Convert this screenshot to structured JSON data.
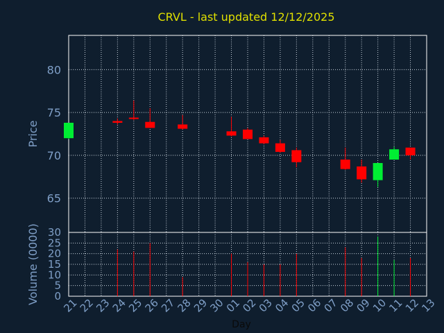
{
  "chart_data": {
    "type": "candlestick",
    "title": "CRVL - last updated 12/12/2025",
    "xlabel": "Day",
    "x_tick_labels": [
      "21",
      "22",
      "23",
      "24",
      "25",
      "26",
      "27",
      "28",
      "29",
      "30",
      "01",
      "02",
      "03",
      "04",
      "05",
      "06",
      "07",
      "08",
      "09",
      "10",
      "11",
      "12",
      "13"
    ],
    "price_panel": {
      "ylabel": "Price",
      "ylim": [
        61,
        84
      ],
      "y_ticks": [
        65,
        70,
        75,
        80
      ],
      "candles": [
        {
          "day": 0,
          "open": 72.0,
          "high": 73.8,
          "low": 71.9,
          "close": 73.8,
          "color": "green"
        },
        {
          "day": 3,
          "open": 74.0,
          "high": 74.3,
          "low": 73.6,
          "close": 73.8,
          "color": "red"
        },
        {
          "day": 4,
          "open": 74.4,
          "high": 76.4,
          "low": 74.1,
          "close": 74.3,
          "color": "red"
        },
        {
          "day": 5,
          "open": 73.9,
          "high": 75.5,
          "low": 73.2,
          "close": 73.2,
          "color": "red"
        },
        {
          "day": 7,
          "open": 73.6,
          "high": 74.7,
          "low": 73.0,
          "close": 73.1,
          "color": "red"
        },
        {
          "day": 10,
          "open": 72.8,
          "high": 74.5,
          "low": 72.2,
          "close": 72.3,
          "color": "red"
        },
        {
          "day": 11,
          "open": 73.0,
          "high": 73.2,
          "low": 71.9,
          "close": 71.9,
          "color": "red"
        },
        {
          "day": 12,
          "open": 72.1,
          "high": 72.3,
          "low": 71.3,
          "close": 71.4,
          "color": "red"
        },
        {
          "day": 13,
          "open": 71.4,
          "high": 71.8,
          "low": 70.3,
          "close": 70.4,
          "color": "red"
        },
        {
          "day": 14,
          "open": 70.6,
          "high": 70.9,
          "low": 68.6,
          "close": 69.2,
          "color": "red"
        },
        {
          "day": 17,
          "open": 69.5,
          "high": 70.9,
          "low": 68.3,
          "close": 68.4,
          "color": "red"
        },
        {
          "day": 18,
          "open": 68.7,
          "high": 69.5,
          "low": 66.8,
          "close": 67.2,
          "color": "red"
        },
        {
          "day": 19,
          "open": 67.1,
          "high": 69.1,
          "low": 66.3,
          "close": 69.1,
          "color": "green"
        },
        {
          "day": 20,
          "open": 69.5,
          "high": 71.0,
          "low": 69.5,
          "close": 70.7,
          "color": "green"
        },
        {
          "day": 21,
          "open": 70.9,
          "high": 70.9,
          "low": 69.5,
          "close": 70.0,
          "color": "red"
        }
      ]
    },
    "volume_panel": {
      "ylabel": "Volume (0000)",
      "ylim": [
        0,
        30
      ],
      "y_ticks": [
        0,
        5,
        10,
        15,
        20,
        25,
        30
      ],
      "bars": [
        {
          "day": 3,
          "value": 22,
          "color": "red"
        },
        {
          "day": 4,
          "value": 21,
          "color": "red"
        },
        {
          "day": 5,
          "value": 25,
          "color": "red"
        },
        {
          "day": 7,
          "value": 9,
          "color": "red"
        },
        {
          "day": 10,
          "value": 20,
          "color": "red"
        },
        {
          "day": 11,
          "value": 16,
          "color": "red"
        },
        {
          "day": 12,
          "value": 15,
          "color": "red"
        },
        {
          "day": 13,
          "value": 15,
          "color": "red"
        },
        {
          "day": 14,
          "value": 20,
          "color": "red"
        },
        {
          "day": 17,
          "value": 23,
          "color": "red"
        },
        {
          "day": 18,
          "value": 18,
          "color": "red"
        },
        {
          "day": 19,
          "value": 28,
          "color": "green"
        },
        {
          "day": 20,
          "value": 17,
          "color": "green"
        },
        {
          "day": 21,
          "value": 18,
          "color": "red"
        }
      ]
    },
    "grid": true,
    "colors": {
      "background": "#0f1e2e",
      "axis": "#7f9fc7",
      "title": "#e0e000",
      "grid": "#c8d2dc",
      "up": "#00ee33",
      "down": "#ff0000"
    }
  }
}
